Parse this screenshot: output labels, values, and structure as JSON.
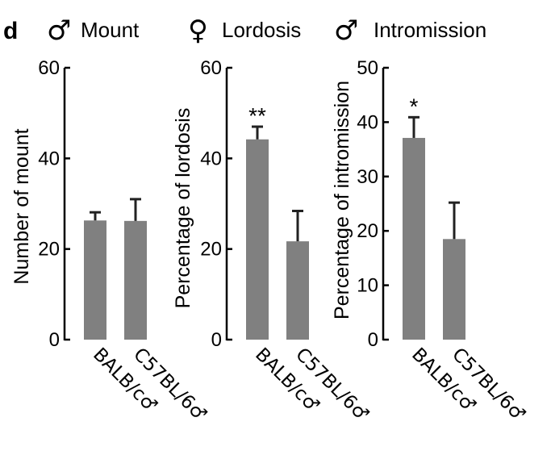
{
  "panel_label": "d",
  "chart_data": [
    {
      "type": "bar",
      "title_symbol": "♂",
      "title": "Mount",
      "ylabel": "Number of mount",
      "categories": [
        "BALB/c♂",
        "C57BL/6♂"
      ],
      "values": [
        26.3,
        26.2
      ],
      "errors": [
        1.8,
        4.8
      ],
      "significance": [
        "",
        ""
      ],
      "ylim": [
        0,
        60
      ],
      "yticks": [
        0,
        20,
        40,
        60
      ],
      "bar_color": "#808080"
    },
    {
      "type": "bar",
      "title_symbol": "♀",
      "title": "Lordosis",
      "ylabel": "Percentage of lordosis",
      "categories": [
        "BALB/c♂",
        "C57BL/6♂"
      ],
      "values": [
        44.2,
        21.7
      ],
      "errors": [
        2.8,
        6.7
      ],
      "significance": [
        "**",
        ""
      ],
      "ylim": [
        0,
        60
      ],
      "yticks": [
        0,
        20,
        40,
        60
      ],
      "bar_color": "#808080"
    },
    {
      "type": "bar",
      "title_symbol": "♂",
      "title": "Intromission",
      "ylabel": "Percentage of intromission",
      "categories": [
        "BALB/c♂",
        "C57BL/6♂"
      ],
      "values": [
        37.1,
        18.5
      ],
      "errors": [
        3.8,
        6.7
      ],
      "significance": [
        "*",
        ""
      ],
      "ylim": [
        0,
        50
      ],
      "yticks": [
        0,
        10,
        20,
        30,
        40,
        50
      ],
      "bar_color": "#808080"
    }
  ]
}
